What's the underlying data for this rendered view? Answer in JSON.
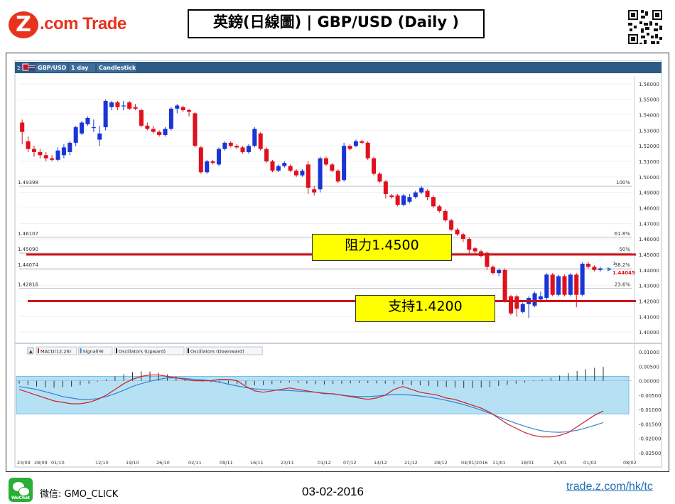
{
  "header": {
    "logo_mark": "Z",
    "logo_text": ".com Trade",
    "title": "英鎊(日線圖) | GBP/USD  (Daily )"
  },
  "toolbar": {
    "index": "2:",
    "symbol": "GBP/USD",
    "interval": "1 day",
    "chart_style": "Candlestick"
  },
  "annotations": {
    "resistance": "阻力1.4500",
    "support": "支持1.4200"
  },
  "footer": {
    "wechat_icon_label": "WeChat",
    "wechat": "微信: GMO_CLICK",
    "date": "03-02-2016",
    "link": "trade.z.com/hk/tc"
  },
  "colors": {
    "up": "#1a35d6",
    "down": "#e0101c",
    "level_line": "#d0141c",
    "callout_bg": "#ffff00",
    "macd_band": "#a9dcf3",
    "macd_line": "#d02020",
    "signal_line": "#3a7fd0",
    "brand": "#e8331c"
  },
  "chart_data": {
    "type": "candlestick",
    "price_axis": {
      "ylim": [
        1.395,
        1.565
      ],
      "ticks": [
        "1.56000",
        "1.55000",
        "1.54000",
        "1.53000",
        "1.52000",
        "1.51000",
        "1.50000",
        "1.49000",
        "1.48000",
        "1.47000",
        "1.46000",
        "1.45000",
        "1.44000",
        "1.43000",
        "1.42000",
        "1.41000",
        "1.40000"
      ]
    },
    "fib_levels": [
      {
        "value": 1.49398,
        "label": "1.49398",
        "pct": "100%"
      },
      {
        "value": 1.46107,
        "label": "1.46107",
        "pct": "61.8%"
      },
      {
        "value": 1.4509,
        "label": "1.45090",
        "pct": "50%"
      },
      {
        "value": 1.44074,
        "label": "1.44074",
        "pct": "38.2%"
      },
      {
        "value": 1.42816,
        "label": "1.42816",
        "pct": "23.6%"
      }
    ],
    "fib_tag": "1.",
    "last_price": "1.44045",
    "resistance": 1.45,
    "support": 1.42,
    "x_labels": [
      "23/09",
      "28/09",
      "01/10",
      "12/10",
      "19/10",
      "26/10",
      "02/11",
      "09/11",
      "16/11",
      "23/11",
      "01/12",
      "07/12",
      "14/12",
      "21/12",
      "28/12",
      "04/01/2016",
      "11/01",
      "18/01",
      "25/01",
      "01/02",
      "08/02"
    ],
    "candles": [
      [
        1.535,
        1.529,
        1.521,
        1.537
      ],
      [
        1.523,
        1.518,
        1.516,
        1.526
      ],
      [
        1.518,
        1.516,
        1.513,
        1.52
      ],
      [
        1.516,
        1.514,
        1.512,
        1.518
      ],
      [
        1.514,
        1.512,
        1.51,
        1.516
      ],
      [
        1.512,
        1.511,
        1.51,
        1.514
      ],
      [
        1.511,
        1.517,
        1.51,
        1.519
      ],
      [
        1.514,
        1.519,
        1.512,
        1.521
      ],
      [
        1.516,
        1.522,
        1.514,
        1.523
      ],
      [
        1.522,
        1.532,
        1.52,
        1.533
      ],
      [
        1.528,
        1.535,
        1.527,
        1.536
      ],
      [
        1.534,
        1.538,
        1.533,
        1.539
      ],
      [
        1.532,
        1.532,
        1.529,
        1.537
      ],
      [
        1.524,
        1.528,
        1.52,
        1.533
      ],
      [
        1.532,
        1.549,
        1.53,
        1.55
      ],
      [
        1.545,
        1.548,
        1.543,
        1.549
      ],
      [
        1.548,
        1.545,
        1.543,
        1.549
      ],
      [
        1.546,
        1.546,
        1.543,
        1.549
      ],
      [
        1.548,
        1.544,
        1.543,
        1.549
      ],
      [
        1.545,
        1.544,
        1.543,
        1.547
      ],
      [
        1.543,
        1.533,
        1.532,
        1.544
      ],
      [
        1.533,
        1.531,
        1.53,
        1.535
      ],
      [
        1.531,
        1.529,
        1.528,
        1.533
      ],
      [
        1.529,
        1.527,
        1.526,
        1.53
      ],
      [
        1.527,
        1.531,
        1.526,
        1.532
      ],
      [
        1.531,
        1.544,
        1.53,
        1.545
      ],
      [
        1.544,
        1.546,
        1.541,
        1.547
      ],
      [
        1.545,
        1.543,
        1.542,
        1.546
      ],
      [
        1.543,
        1.542,
        1.539,
        1.544
      ],
      [
        1.541,
        1.52,
        1.519,
        1.542
      ],
      [
        1.519,
        1.503,
        1.502,
        1.52
      ],
      [
        1.503,
        1.51,
        1.502,
        1.511
      ],
      [
        1.51,
        1.509,
        1.508,
        1.511
      ],
      [
        1.508,
        1.518,
        1.507,
        1.519
      ],
      [
        1.518,
        1.522,
        1.517,
        1.523
      ],
      [
        1.522,
        1.52,
        1.519,
        1.523
      ],
      [
        1.52,
        1.519,
        1.518,
        1.521
      ],
      [
        1.519,
        1.516,
        1.515,
        1.52
      ],
      [
        1.516,
        1.52,
        1.515,
        1.521
      ],
      [
        1.52,
        1.531,
        1.519,
        1.532
      ],
      [
        1.528,
        1.518,
        1.517,
        1.529
      ],
      [
        1.518,
        1.51,
        1.509,
        1.519
      ],
      [
        1.51,
        1.504,
        1.503,
        1.511
      ],
      [
        1.504,
        1.507,
        1.503,
        1.508
      ],
      [
        1.507,
        1.509,
        1.506,
        1.51
      ],
      [
        1.507,
        1.504,
        1.503,
        1.508
      ],
      [
        1.504,
        1.501,
        1.5,
        1.505
      ],
      [
        1.501,
        1.504,
        1.5,
        1.505
      ],
      [
        1.508,
        1.493,
        1.489,
        1.51
      ],
      [
        1.492,
        1.49,
        1.488,
        1.494
      ],
      [
        1.492,
        1.512,
        1.49,
        1.513
      ],
      [
        1.512,
        1.508,
        1.507,
        1.513
      ],
      [
        1.508,
        1.504,
        1.503,
        1.509
      ],
      [
        1.504,
        1.497,
        1.496,
        1.505
      ],
      [
        1.498,
        1.52,
        1.497,
        1.522
      ],
      [
        1.52,
        1.518,
        1.517,
        1.521
      ],
      [
        1.52,
        1.523,
        1.519,
        1.524
      ],
      [
        1.523,
        1.522,
        1.521,
        1.524
      ],
      [
        1.522,
        1.512,
        1.511,
        1.523
      ],
      [
        1.512,
        1.502,
        1.501,
        1.513
      ],
      [
        1.502,
        1.497,
        1.496,
        1.503
      ],
      [
        1.497,
        1.489,
        1.486,
        1.498
      ],
      [
        1.488,
        1.487,
        1.486,
        1.489
      ],
      [
        1.488,
        1.482,
        1.481,
        1.489
      ],
      [
        1.482,
        1.488,
        1.481,
        1.489
      ],
      [
        1.484,
        1.487,
        1.483,
        1.489
      ],
      [
        1.487,
        1.49,
        1.486,
        1.491
      ],
      [
        1.49,
        1.493,
        1.489,
        1.494
      ],
      [
        1.491,
        1.487,
        1.485,
        1.492
      ],
      [
        1.487,
        1.481,
        1.48,
        1.488
      ],
      [
        1.481,
        1.478,
        1.477,
        1.482
      ],
      [
        1.478,
        1.472,
        1.471,
        1.479
      ],
      [
        1.472,
        1.466,
        1.465,
        1.473
      ],
      [
        1.466,
        1.463,
        1.462,
        1.467
      ],
      [
        1.463,
        1.46,
        1.458,
        1.464
      ],
      [
        1.46,
        1.453,
        1.45,
        1.461
      ],
      [
        1.454,
        1.452,
        1.45,
        1.455
      ],
      [
        1.452,
        1.449,
        1.448,
        1.453
      ],
      [
        1.451,
        1.442,
        1.44,
        1.452
      ],
      [
        1.442,
        1.438,
        1.437,
        1.443
      ],
      [
        1.438,
        1.44,
        1.436,
        1.441
      ],
      [
        1.44,
        1.42,
        1.419,
        1.441
      ],
      [
        1.423,
        1.412,
        1.411,
        1.424
      ],
      [
        1.423,
        1.415,
        1.41,
        1.424
      ],
      [
        1.413,
        1.418,
        1.412,
        1.419
      ],
      [
        1.418,
        1.422,
        1.409,
        1.423
      ],
      [
        1.417,
        1.425,
        1.416,
        1.426
      ],
      [
        1.421,
        1.423,
        1.419,
        1.426
      ],
      [
        1.422,
        1.437,
        1.42,
        1.438
      ],
      [
        1.437,
        1.424,
        1.423,
        1.438
      ],
      [
        1.424,
        1.436,
        1.423,
        1.437
      ],
      [
        1.436,
        1.424,
        1.423,
        1.437
      ],
      [
        1.424,
        1.437,
        1.423,
        1.438
      ],
      [
        1.437,
        1.424,
        1.416,
        1.438
      ],
      [
        1.424,
        1.444,
        1.423,
        1.445
      ],
      [
        1.444,
        1.442,
        1.441,
        1.445
      ],
      [
        1.442,
        1.44,
        1.439,
        1.443
      ],
      [
        1.44,
        1.441,
        1.439,
        1.442
      ]
    ],
    "indicator_legend": [
      "MACD(12,26)",
      "Signal(9)",
      "Oscillators (Upward)",
      "Oscillators (Downward)"
    ],
    "macd_axis": {
      "ylim": [
        -0.027,
        0.012
      ],
      "ticks": [
        "0.01000",
        "0.00500",
        "0.00000",
        "-0.00500",
        "-0.01000",
        "-0.01500",
        "-0.02000",
        "-0.02500"
      ],
      "band": [
        -0.0115,
        0.0015
      ]
    },
    "macd": [
      -0.003,
      -0.004,
      -0.005,
      -0.006,
      -0.007,
      -0.0075,
      -0.008,
      -0.008,
      -0.0075,
      -0.0065,
      -0.005,
      -0.003,
      -0.001,
      0.0005,
      0.0015,
      0.002,
      0.002,
      0.0015,
      0.001,
      0.0005,
      0.0,
      0.0,
      0.0,
      0.0005,
      0.0005,
      0.0,
      -0.002,
      -0.0035,
      -0.004,
      -0.0035,
      -0.003,
      -0.0025,
      -0.003,
      -0.0035,
      -0.004,
      -0.0045,
      -0.0045,
      -0.005,
      -0.0055,
      -0.006,
      -0.0065,
      -0.006,
      -0.005,
      -0.003,
      -0.002,
      -0.003,
      -0.004,
      -0.0045,
      -0.005,
      -0.006,
      -0.0065,
      -0.0075,
      -0.0085,
      -0.0095,
      -0.011,
      -0.013,
      -0.015,
      -0.0165,
      -0.018,
      -0.019,
      -0.0195,
      -0.0195,
      -0.019,
      -0.018,
      -0.016,
      -0.014,
      -0.012,
      -0.0105
    ],
    "signal": [
      -0.002,
      -0.0025,
      -0.003,
      -0.0038,
      -0.0046,
      -0.0055,
      -0.006,
      -0.0065,
      -0.0065,
      -0.0062,
      -0.0055,
      -0.0045,
      -0.0033,
      -0.002,
      -0.001,
      -0.0002,
      0.0005,
      0.001,
      0.001,
      0.0008,
      0.0005,
      0.0003,
      0.0,
      -0.0005,
      -0.0012,
      -0.0018,
      -0.0024,
      -0.0028,
      -0.003,
      -0.0032,
      -0.0033,
      -0.0034,
      -0.0036,
      -0.0038,
      -0.004,
      -0.0043,
      -0.0046,
      -0.005,
      -0.0053,
      -0.0055,
      -0.0055,
      -0.0053,
      -0.005,
      -0.0048,
      -0.0048,
      -0.005,
      -0.0053,
      -0.0057,
      -0.0062,
      -0.0068,
      -0.0075,
      -0.0083,
      -0.0092,
      -0.0102,
      -0.0113,
      -0.0125,
      -0.0137,
      -0.0148,
      -0.0158,
      -0.0167,
      -0.0174,
      -0.0178,
      -0.0179,
      -0.0177,
      -0.0172,
      -0.0164,
      -0.0155,
      -0.0145
    ],
    "histogram": [
      -0.001,
      -0.0015,
      -0.002,
      -0.0023,
      -0.0024,
      -0.0022,
      -0.002,
      -0.0015,
      -0.001,
      -0.0003,
      0.0005,
      0.0015,
      0.0023,
      0.003,
      0.0033,
      0.0032,
      0.0028,
      0.0022,
      0.0015,
      0.0008,
      0.0,
      -0.0003,
      -0.0005,
      -0.0008,
      -0.001,
      -0.0012,
      -0.0015,
      -0.0016,
      -0.0015,
      -0.0012,
      -0.0008,
      -0.0006,
      -0.0008,
      -0.001,
      -0.0012,
      -0.0013,
      -0.0012,
      -0.001,
      -0.0009,
      -0.0008,
      -0.0008,
      -0.0009,
      -0.001,
      -0.0012,
      -0.0014,
      -0.0015,
      -0.0016,
      -0.0018,
      -0.002,
      -0.0022,
      -0.0024,
      -0.0025,
      -0.0025,
      -0.0024,
      -0.0022,
      -0.0018,
      -0.0014,
      -0.001,
      -0.0006,
      -0.0002,
      0.0004,
      0.001,
      0.0018,
      0.0026,
      0.0034,
      0.004,
      0.0045,
      0.0048
    ]
  }
}
